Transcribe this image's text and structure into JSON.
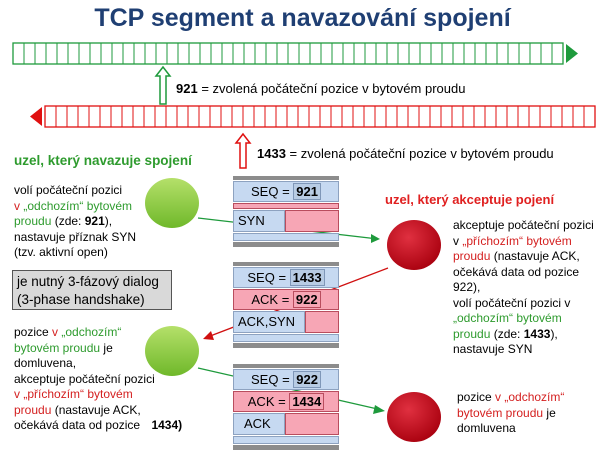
{
  "title": "TCP segment a navazování spojení",
  "stream_out_label_value": "921",
  "stream_out_label_text": " = zvolená počáteční pozice v bytovém proudu",
  "stream_in_label_value": "1433",
  "stream_in_label_text": " = zvolená počáteční pozice v bytovém proudu",
  "left_node_title": "uzel, který navazuje spojení",
  "right_node_title": "uzel, který akceptuje pojení",
  "left_text1": {
    "l1": "volí počáteční pozici",
    "l2a": "v ",
    "l2b": "„odchozím“ bytovém",
    "l3a": "proudu",
    "l3b": " (zde: ",
    "l3c": "921",
    "l3d": "),",
    "l4": "nastavuje příznak SYN",
    "l5": "(tzv. aktivní open)"
  },
  "dialog_box": {
    "l1": "je nutný 3-fázový dialog",
    "l2": "(3-phase handshake)"
  },
  "left_text2": {
    "l1a": "pozice ",
    "l1b": "v",
    "l1c": " „odchozím“",
    "l2": "bytovém proudu",
    "l2b": " je",
    "l3": "domluvena,",
    "l4": "akceptuje počáteční pozici",
    "l5a": "v ",
    "l5b": "„příchozím“ bytovém",
    "l6a": "proudu",
    "l6b": " (nastavuje ACK,",
    "l7": "očekává data od pozice",
    "l7b": "1434)"
  },
  "right_text1": {
    "l1": "akceptuje počáteční pozici",
    "l2a": "v ",
    "l2b": "„příchozím“ bytovém",
    "l3a": "proudu",
    "l3b": " (nastavuje ACK,",
    "l4": "očekává data od pozice",
    "l5": "922),",
    "l6": "volí počáteční pozici v",
    "l7": "„odchozím“ bytovém",
    "l8a": "proudu",
    "l8b": " (zde: ",
    "l8c": "1433",
    "l8d": "),",
    "l9": "nastavuje SYN"
  },
  "right_text2": {
    "l1a": "pozice ",
    "l1b": "v",
    "l1c": " „odchozím“",
    "l2a": "bytovém proudu",
    "l2b": " je",
    "l3": "domluvena"
  },
  "seg1": {
    "seq_label": "SEQ = ",
    "seq_val": "921",
    "flag": "SYN"
  },
  "seg2": {
    "seq_label": "SEQ = ",
    "seq_val": "1433",
    "ack_label": "ACK = ",
    "ack_val": "922",
    "flag": "ACK,SYN"
  },
  "seg3": {
    "seq_label": "SEQ = ",
    "seq_val": "922",
    "ack_label": "ACK = ",
    "ack_val": "1434",
    "flag": "ACK"
  },
  "colors": {
    "green_stream": "#1E9A3C",
    "red_stream": "#E01010",
    "title": "#1F3F73"
  }
}
